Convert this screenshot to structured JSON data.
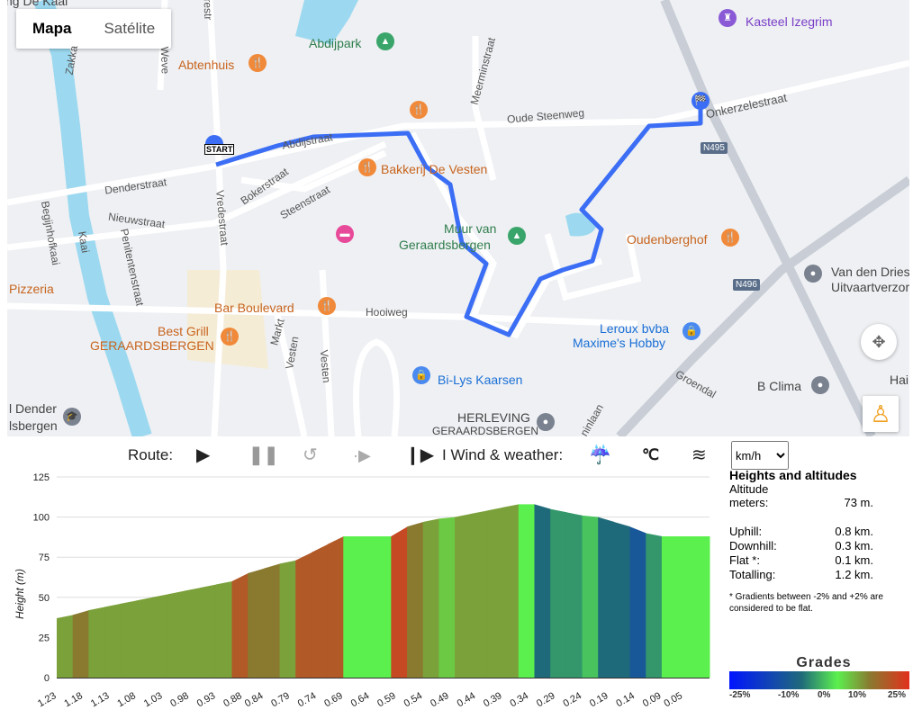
{
  "map": {
    "type_buttons": [
      "Mapa",
      "Satélite"
    ],
    "active_type": "Mapa",
    "places": {
      "kasteel": "Kasteel Izegrim",
      "abdijpark": "Abdijpark",
      "abtenhuis": "Abtenhuis",
      "bakkerij": "Bakkerij De Vesten",
      "muur1": "Muur van",
      "muur2": "Geraardsbergen",
      "oudenberghof": "Oudenberghof",
      "vandendriesche1": "Van den Driesche",
      "vandendriesche2": "Uitvaartverzorging",
      "pizzeria": "Pizzeria",
      "barboulevard": "Bar Boulevard",
      "bestgrill1": "Best Grill",
      "bestgrill2": "GERAARDSBERGEN",
      "leroux1": "Leroux bvba",
      "leroux2": "Maxime's Hobby",
      "bilys": "Bi-Lys Kaarsen",
      "bclima": "B Clima",
      "herleving1": "HERLEVING",
      "herleving2": "GERAARDSBERGEN",
      "dender1": "l Dender",
      "dender2": "lsbergen",
      "dekaai": "ng De Kaai",
      "hai": "Hai"
    },
    "streets": {
      "denderstraat": "Denderstraat",
      "nieuwstraat": "Nieuwstraat",
      "abdijstraat": "Abdijstraat",
      "bokerstraat": "Bokerstraat",
      "steenstraat": "Steenstraat",
      "vredestraat": "Vredestraat",
      "oudesteenweg": "Oude Steenweg",
      "onkerzelestraat": "Onkerzelestraat",
      "meerminstraat": "Meerminstraat",
      "hooiweg": "Hooiweg",
      "markt": "Markt",
      "vesten1": "Vesten",
      "vesten2": "Vesten",
      "penitentenstraat": "Penitentenstraat",
      "kaai": "Kaai",
      "beginjnhofkaai": "Begijnhofkaai",
      "zakka": "Zakka",
      "boelarestr": "Boelarestr",
      "wev": "Weve",
      "groendal": "Groendal",
      "ninlaan": "ninlaan",
      "n495": "N495",
      "n496": "N496"
    },
    "start_label": "START",
    "route_color": "#3b6ef5"
  },
  "controls": {
    "route_label": "Route:",
    "weather_label": "I Wind & weather:",
    "unit_selected": "km/h"
  },
  "stats": {
    "title": "Heights and altitudes",
    "altitude_label": "Altitude",
    "meters_label": "meters:",
    "meters_value": "73 m.",
    "uphill_label": "Uphill:",
    "uphill_value": "0.8 km.",
    "downhill_label": "Downhill:",
    "downhill_value": "0.3 km.",
    "flat_label": "Flat *:",
    "flat_value": "0.1 km.",
    "total_label": "Totalling:",
    "total_value": "1.2 km.",
    "note": "* Gradients between -2% and +2% are considered to be flat."
  },
  "grades": {
    "title": "Grades",
    "ticks": [
      "-25%",
      "-10%",
      "0%",
      "10%",
      "25%"
    ],
    "colors": {
      "-25": "#0014ff",
      "-10": "#1f6a7a",
      "0": "#5cf04e",
      "10": "#8a7a30",
      "25": "#e2301c"
    }
  },
  "chart_data": {
    "type": "area",
    "ylabel": "Height (m)",
    "xlabel": "",
    "ylim": [
      0,
      125
    ],
    "yticks": [
      0,
      25,
      50,
      75,
      100,
      125
    ],
    "xlim": [
      1.23,
      0
    ],
    "xtick_labels": [
      "1.23",
      "1.18",
      "1.13",
      "1.08",
      "1.03",
      "0.98",
      "0.93",
      "0.88",
      "0.84",
      "0.79",
      "0.74",
      "0.69",
      "0.64",
      "0.59",
      "0.54",
      "0.49",
      "0.44",
      "0.39",
      "0.34",
      "0.29",
      "0.24",
      "0.19",
      "0.14",
      "0.09",
      "0.05"
    ],
    "x": [
      1.23,
      1.2,
      1.17,
      1.14,
      1.11,
      1.08,
      1.05,
      1.02,
      0.99,
      0.96,
      0.93,
      0.9,
      0.87,
      0.84,
      0.81,
      0.78,
      0.75,
      0.72,
      0.69,
      0.66,
      0.63,
      0.6,
      0.57,
      0.54,
      0.51,
      0.48,
      0.45,
      0.42,
      0.39,
      0.36,
      0.33,
      0.3,
      0.27,
      0.24,
      0.21,
      0.18,
      0.15,
      0.12,
      0.09,
      0.06,
      0.03,
      0.0
    ],
    "height": [
      37,
      39,
      42,
      44,
      46,
      48,
      50,
      52,
      54,
      56,
      58,
      60,
      65,
      68,
      71,
      73,
      78,
      83,
      88,
      88,
      88,
      88,
      94,
      97,
      99,
      100,
      102,
      104,
      106,
      108,
      108,
      105,
      103,
      101,
      100,
      97,
      94,
      90,
      88,
      88,
      88,
      88
    ]
  }
}
